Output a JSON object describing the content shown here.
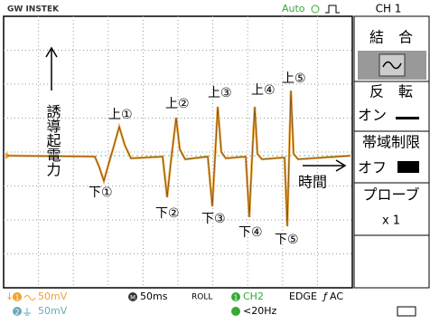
{
  "header": {
    "brand": "GW INSTEK",
    "trigger_mode": "Auto",
    "channel": "CH 1"
  },
  "menu": {
    "coupling": "結　合",
    "invert": "反　転",
    "invert_state": "オン",
    "bandwidth": "帯域制限",
    "bandwidth_state": "オフ",
    "probe": "プローブ",
    "probe_value": "x 1"
  },
  "annotations": {
    "axis_y": "誘導起電力",
    "axis_x": "時間",
    "peaks": [
      {
        "up": "上①",
        "down": "下①"
      },
      {
        "up": "上②",
        "down": "下②"
      },
      {
        "up": "上③",
        "down": "下③"
      },
      {
        "up": "上④",
        "down": "下④"
      },
      {
        "up": "上⑤",
        "down": "下⑤"
      }
    ]
  },
  "footer": {
    "ch1_id": "1",
    "ch1_scale": "50mV",
    "ch2_id": "2",
    "ch2_scale": "50mV",
    "timebase_id": "M",
    "timebase": "50ms",
    "mode": "ROLL",
    "trigger_id": "1",
    "trigger_source": "CH2",
    "trigger_type": "EDGE",
    "trigger_coupling": "AC",
    "trigger_freq": "<20Hz"
  }
}
